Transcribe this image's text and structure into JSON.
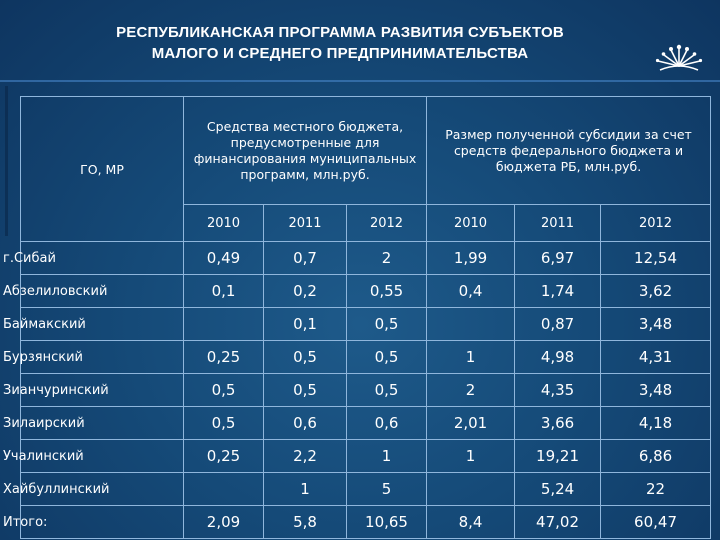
{
  "title_line1": "РЕСПУБЛИКАНСКАЯ ПРОГРАММА РАЗВИТИЯ СУБЪЕКТОВ",
  "title_line2": "МАЛОГО И СРЕДНЕГО ПРЕДПРИНИМАТЕЛЬСТВА",
  "logo_icon": "kurai-flower-emblem-icon",
  "table": {
    "row_header": "ГО, МР",
    "group_local": "Средства местного бюджета, предусмотренные для финансирования муниципальных программ, млн.руб.",
    "group_federal": "Размер полученной субсидии за счет средств федерального бюджета и бюджета РБ, млн.руб.",
    "years": [
      "2010",
      "2011",
      "2012",
      "2010",
      "2011",
      "2012"
    ],
    "rows": [
      {
        "name": "г.Сибай",
        "v": [
          "0,49",
          "0,7",
          "2",
          "1,99",
          "6,97",
          "12,54"
        ]
      },
      {
        "name": "Абзелиловский",
        "v": [
          "0,1",
          "0,2",
          "0,55",
          "0,4",
          "1,74",
          "3,62"
        ]
      },
      {
        "name": "Баймакский",
        "v": [
          "",
          "0,1",
          "0,5",
          "",
          "0,87",
          "3,48"
        ]
      },
      {
        "name": "Бурзянский",
        "v": [
          "0,25",
          "0,5",
          "0,5",
          "1",
          "4,98",
          "4,31"
        ]
      },
      {
        "name": "Зианчуринский",
        "v": [
          "0,5",
          "0,5",
          "0,5",
          "2",
          "4,35",
          "3,48"
        ]
      },
      {
        "name": "Зилаирский",
        "v": [
          "0,5",
          "0,6",
          "0,6",
          "2,01",
          "3,66",
          "4,18"
        ]
      },
      {
        "name": "Учалинский",
        "v": [
          "0,25",
          "2,2",
          "1",
          "1",
          "19,21",
          "6,86"
        ]
      },
      {
        "name": "Хайбуллинский",
        "v": [
          "",
          "1",
          "5",
          "",
          "5,24",
          "22"
        ]
      },
      {
        "name": "Итого:",
        "v": [
          "2,09",
          "5,8",
          "10,65",
          "8,4",
          "47,02",
          "60,47"
        ]
      }
    ]
  }
}
